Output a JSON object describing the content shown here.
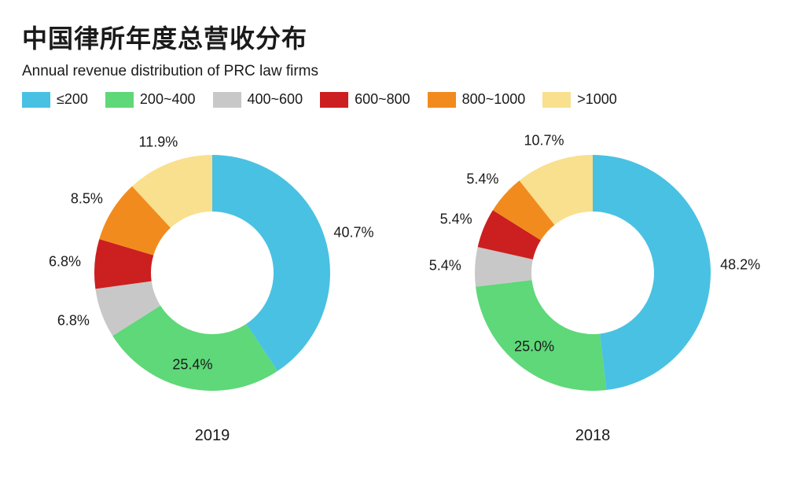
{
  "title_cn": "中国律所年度总营收分布",
  "subtitle_en": "Annual revenue distribution of PRC law firms",
  "legend": {
    "items": [
      {
        "label": "≤200",
        "color": "#49c1e3"
      },
      {
        "label": "200~400",
        "color": "#5ed878"
      },
      {
        "label": "400~600",
        "color": "#c8c8c8"
      },
      {
        "label": "600~800",
        "color": "#cc1f1f"
      },
      {
        "label": "800~1000",
        "color": "#f28b1d"
      },
      {
        "label": ">1000",
        "color": "#f8e08e"
      }
    ]
  },
  "donut_style": {
    "outer_radius": 150,
    "inner_radius": 78,
    "label_radius": 120,
    "label_radius_outside": 178,
    "start_angle_deg": -90,
    "background_color": "#ffffff",
    "label_fontsize": 18,
    "caption_fontsize": 20
  },
  "charts": [
    {
      "caption": "2019",
      "slices": [
        {
          "value": 40.7,
          "label": "40.7%",
          "color": "#49c1e3",
          "label_outside": true
        },
        {
          "value": 25.4,
          "label": "25.4%",
          "color": "#5ed878",
          "label_outside": false
        },
        {
          "value": 6.8,
          "label": "6.8%",
          "color": "#c8c8c8",
          "label_outside": true
        },
        {
          "value": 6.8,
          "label": "6.8%",
          "color": "#cc1f1f",
          "label_outside": true
        },
        {
          "value": 8.5,
          "label": "8.5%",
          "color": "#f28b1d",
          "label_outside": true
        },
        {
          "value": 11.9,
          "label": "11.9%",
          "color": "#f8e08e",
          "label_outside": true
        }
      ]
    },
    {
      "caption": "2018",
      "slices": [
        {
          "value": 48.2,
          "label": "48.2%",
          "color": "#49c1e3",
          "label_outside": true
        },
        {
          "value": 25.0,
          "label": "25.0%",
          "color": "#5ed878",
          "label_outside": false
        },
        {
          "value": 5.4,
          "label": "5.4%",
          "color": "#c8c8c8",
          "label_outside": true
        },
        {
          "value": 5.4,
          "label": "5.4%",
          "color": "#cc1f1f",
          "label_outside": true
        },
        {
          "value": 5.4,
          "label": "5.4%",
          "color": "#f28b1d",
          "label_outside": true
        },
        {
          "value": 10.7,
          "label": "10.7%",
          "color": "#f8e08e",
          "label_outside": true
        }
      ]
    }
  ]
}
